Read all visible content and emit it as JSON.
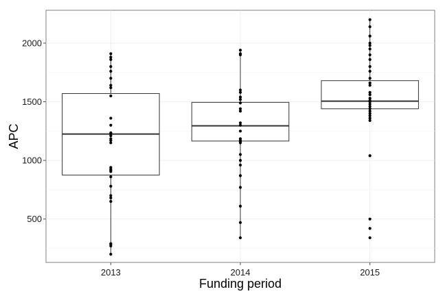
{
  "chart_data": {
    "type": "box",
    "xlabel": "Funding period",
    "ylabel": "APC",
    "ylim": [
      130,
      2280
    ],
    "y_ticks": [
      500,
      1000,
      1500,
      2000
    ],
    "categories": [
      "2013",
      "2014",
      "2015"
    ],
    "grid": true,
    "boxes": [
      {
        "category": "2013",
        "whisker_low": 200,
        "q1": 875,
        "median": 1225,
        "q3": 1570,
        "whisker_high": 1910,
        "points": [
          200,
          270,
          285,
          290,
          650,
          680,
          700,
          780,
          860,
          905,
          915,
          925,
          940,
          1150,
          1170,
          1185,
          1210,
          1225,
          1235,
          1300,
          1360,
          1550,
          1620,
          1640,
          1700,
          1760,
          1800,
          1860,
          1880,
          1910
        ]
      },
      {
        "category": "2014",
        "whisker_low": 340,
        "q1": 1165,
        "median": 1295,
        "q3": 1495,
        "whisker_high": 1940,
        "points": [
          340,
          470,
          610,
          770,
          870,
          960,
          1000,
          1050,
          1150,
          1160,
          1170,
          1185,
          1250,
          1300,
          1320,
          1420,
          1440,
          1490,
          1520,
          1540,
          1580,
          1600,
          1900,
          1910,
          1940
        ]
      },
      {
        "category": "2015",
        "whisker_low": 1340,
        "q1": 1440,
        "median": 1505,
        "q3": 1680,
        "whisker_high": 2200,
        "points": [
          340,
          420,
          500,
          1040,
          1340,
          1360,
          1380,
          1400,
          1420,
          1440,
          1460,
          1480,
          1500,
          1510,
          1530,
          1560,
          1580,
          1640,
          1660,
          1700,
          1760,
          1800,
          1860,
          1900,
          1950,
          1980,
          2000,
          2060,
          2140,
          2200
        ]
      }
    ]
  }
}
